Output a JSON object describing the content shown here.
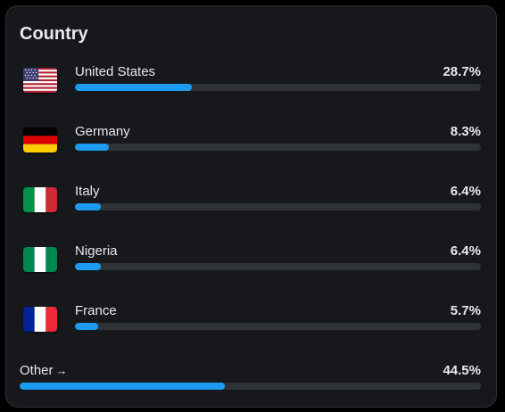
{
  "card": {
    "title": "Country"
  },
  "colors": {
    "accent": "#1d9bf0",
    "track": "#2f3336",
    "text": "#e7e9ea",
    "background": "#16181c"
  },
  "countries": [
    {
      "name": "United States",
      "percent_label": "28.7%",
      "percent": 28.7,
      "flag": "us-flag-icon"
    },
    {
      "name": "Germany",
      "percent_label": "8.3%",
      "percent": 8.3,
      "flag": "germany-flag-icon"
    },
    {
      "name": "Italy",
      "percent_label": "6.4%",
      "percent": 6.4,
      "flag": "italy-flag-icon"
    },
    {
      "name": "Nigeria",
      "percent_label": "6.4%",
      "percent": 6.4,
      "flag": "nigeria-flag-icon"
    },
    {
      "name": "France",
      "percent_label": "5.7%",
      "percent": 5.7,
      "flag": "france-flag-icon"
    }
  ],
  "other": {
    "label": "Other",
    "arrow": "→",
    "percent_label": "44.5%",
    "percent": 44.5
  }
}
